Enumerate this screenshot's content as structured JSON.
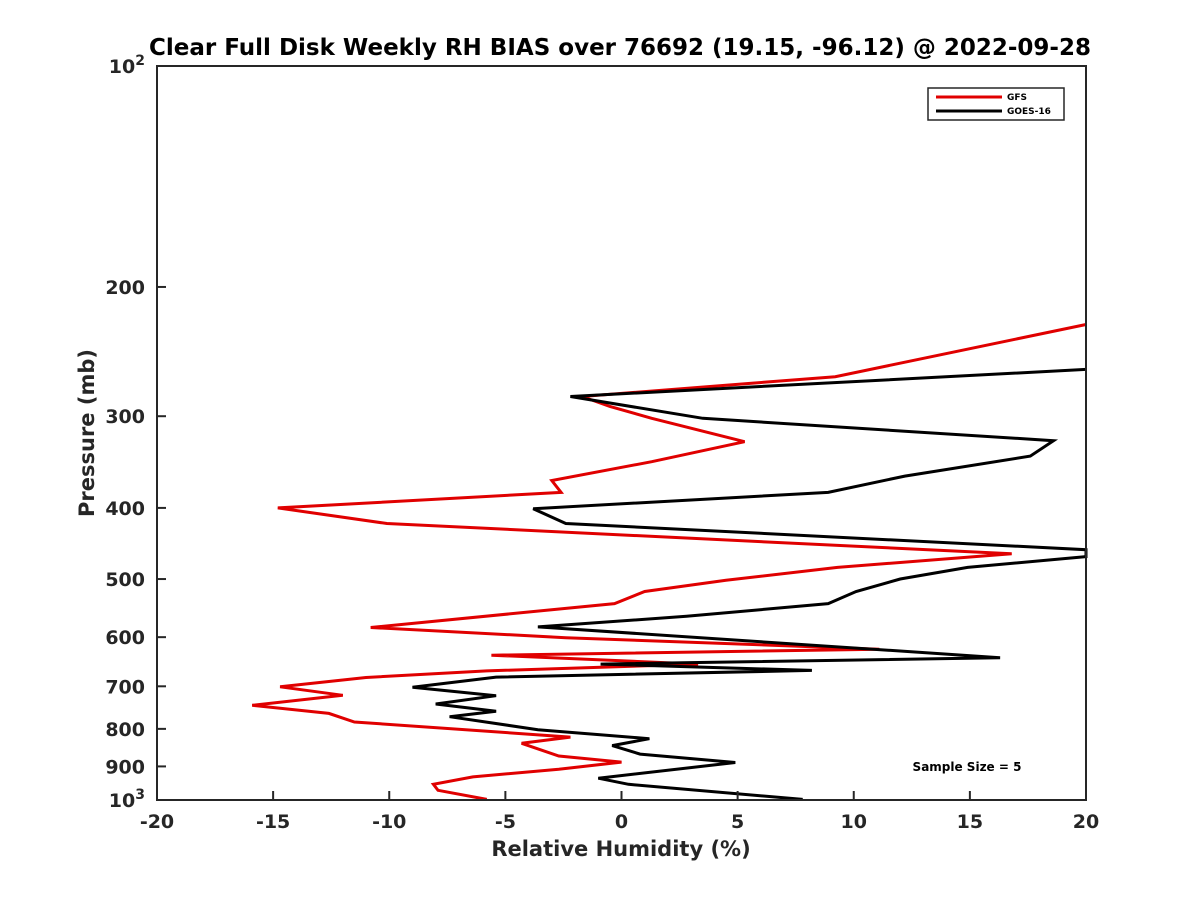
{
  "chart_data": {
    "type": "line",
    "title": "Clear Full Disk Weekly RH BIAS over 76692 (19.15, -96.12) @ 2022-09-28",
    "xlabel": "Relative Humidity (%)",
    "ylabel": "Pressure (mb)",
    "xlim": [
      -20,
      20
    ],
    "ylim": [
      100,
      1000
    ],
    "yscale": "log",
    "yreversed": true,
    "x_ticks": [
      -20,
      -15,
      -10,
      -5,
      0,
      5,
      10,
      15,
      20
    ],
    "x_tick_labels": [
      "-20",
      "-15",
      "-10",
      "-5",
      "0",
      "5",
      "10",
      "15",
      "20"
    ],
    "y_ticks_plain": [
      {
        "value": 200,
        "label": "200"
      },
      {
        "value": 300,
        "label": "300"
      },
      {
        "value": 400,
        "label": "400"
      },
      {
        "value": 500,
        "label": "500"
      },
      {
        "value": 600,
        "label": "600"
      },
      {
        "value": 700,
        "label": "700"
      },
      {
        "value": 800,
        "label": "800"
      },
      {
        "value": 900,
        "label": "900"
      }
    ],
    "y_ticks_pow": [
      {
        "value": 100,
        "base": "10",
        "exp": "2"
      },
      {
        "value": 1000,
        "base": "10",
        "exp": "3"
      }
    ],
    "legend": {
      "position": "top-right",
      "entries": [
        "GFS",
        "GOES-16"
      ]
    },
    "annotation": "Sample Size = 5",
    "series": [
      {
        "name": "GFS",
        "color": "#e00000",
        "points": [
          [
            20,
            225
          ],
          [
            9.2,
            265
          ],
          [
            -1.7,
            282
          ],
          [
            -0.5,
            291
          ],
          [
            1.3,
            302
          ],
          [
            5.3,
            325
          ],
          [
            1.3,
            346
          ],
          [
            -3.0,
            367
          ],
          [
            -2.6,
            381
          ],
          [
            -14.8,
            400
          ],
          [
            -10.1,
            420
          ],
          [
            16.8,
            462
          ],
          [
            9.3,
            482
          ],
          [
            4.5,
            502
          ],
          [
            1.0,
            520
          ],
          [
            -0.3,
            540
          ],
          [
            -10.8,
            582
          ],
          [
            -2.4,
            601
          ],
          [
            11.1,
            623
          ],
          [
            -5.6,
            635
          ],
          [
            3.3,
            653
          ],
          [
            -5.8,
            667
          ],
          [
            -11.0,
            681
          ],
          [
            -14.7,
            701
          ],
          [
            -12.0,
            720
          ],
          [
            -15.9,
            743
          ],
          [
            -12.6,
            762
          ],
          [
            -11.5,
            783
          ],
          [
            -2.2,
            821
          ],
          [
            -4.3,
            837
          ],
          [
            -2.7,
            871
          ],
          [
            0.0,
            888
          ],
          [
            -2.7,
            908
          ],
          [
            -6.4,
            930
          ],
          [
            -8.1,
            952
          ],
          [
            -7.9,
            970
          ],
          [
            -5.8,
            998
          ]
        ]
      },
      {
        "name": "GOES-16",
        "color": "#000000",
        "points": [
          [
            20,
            259
          ],
          [
            -2.2,
            282
          ],
          [
            3.5,
            302
          ],
          [
            18.6,
            324
          ],
          [
            17.6,
            340
          ],
          [
            12.2,
            362
          ],
          [
            8.9,
            381
          ],
          [
            -3.8,
            401
          ],
          [
            -2.4,
            420
          ],
          [
            20,
            456
          ],
          [
            20,
            466
          ],
          [
            14.9,
            482
          ],
          [
            12.0,
            500
          ],
          [
            10.1,
            520
          ],
          [
            8.9,
            540
          ],
          [
            2.8,
            562
          ],
          [
            -3.6,
            581
          ],
          [
            16.3,
            640
          ],
          [
            -0.9,
            653
          ],
          [
            8.2,
            666
          ],
          [
            -5.4,
            680
          ],
          [
            -9.0,
            702
          ],
          [
            -5.4,
            721
          ],
          [
            -8.0,
            740
          ],
          [
            -5.4,
            757
          ],
          [
            -7.4,
            770
          ],
          [
            -3.6,
            802
          ],
          [
            1.2,
            825
          ],
          [
            -0.4,
            843
          ],
          [
            0.8,
            866
          ],
          [
            4.9,
            889
          ],
          [
            -1.0,
            934
          ],
          [
            0.3,
            952
          ],
          [
            7.8,
            998
          ]
        ]
      }
    ]
  }
}
